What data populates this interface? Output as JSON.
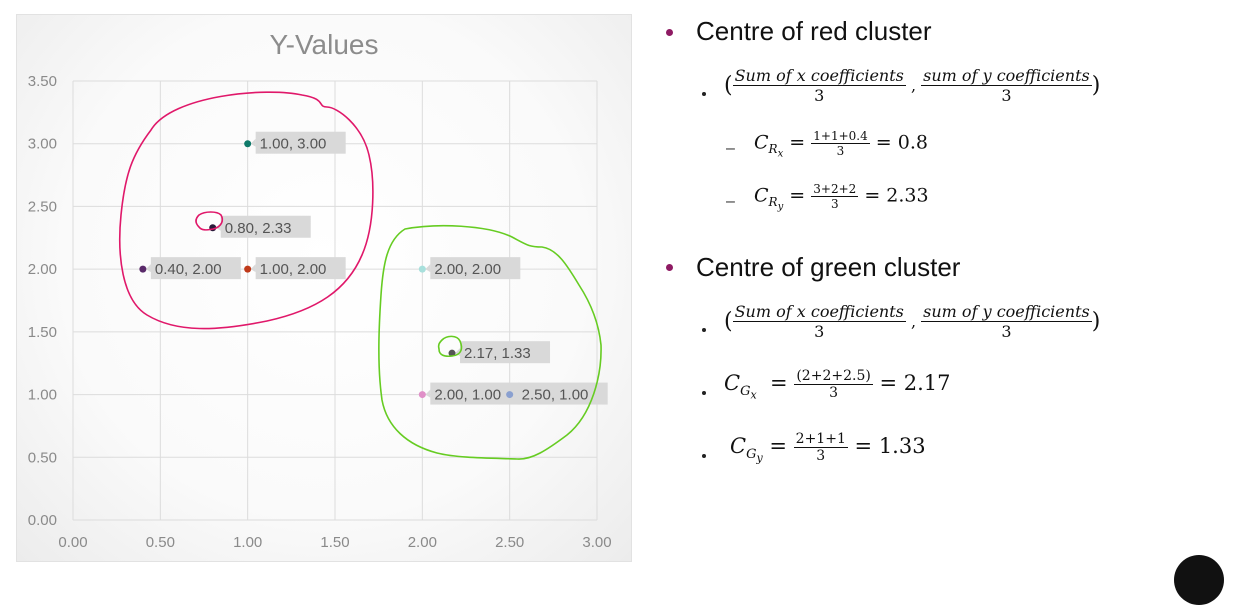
{
  "chart_data": {
    "type": "scatter",
    "title": "Y-Values",
    "xlim": [
      0,
      3
    ],
    "ylim": [
      0,
      3.5
    ],
    "x_ticks": [
      "0.00",
      "0.50",
      "1.00",
      "1.50",
      "2.00",
      "2.50",
      "3.00"
    ],
    "y_ticks": [
      "0.00",
      "0.50",
      "1.00",
      "1.50",
      "2.00",
      "2.50",
      "3.00",
      "3.50"
    ],
    "grid": true,
    "points": [
      {
        "x": 1.0,
        "y": 3.0,
        "label": "1.00, 3.00",
        "color": "#0f7a6a"
      },
      {
        "x": 0.8,
        "y": 2.33,
        "label": "0.80, 2.33",
        "color": "#2a1a3a"
      },
      {
        "x": 0.4,
        "y": 2.0,
        "label": "0.40, 2.00",
        "color": "#5a2a6a"
      },
      {
        "x": 1.0,
        "y": 2.0,
        "label": "1.00, 2.00",
        "color": "#c03a1a"
      },
      {
        "x": 2.0,
        "y": 2.0,
        "label": "2.00, 2.00",
        "color": "#a8e0dc"
      },
      {
        "x": 2.17,
        "y": 1.33,
        "label": "2.17, 1.33",
        "color": "#555555"
      },
      {
        "x": 2.0,
        "y": 1.0,
        "label": "2.00, 1.00",
        "color": "#e090c8"
      },
      {
        "x": 2.5,
        "y": 1.0,
        "label": "2.50, 1.00",
        "color": "#8aa0d0"
      }
    ],
    "annotations": {
      "red_cluster_color": "#e0186a",
      "green_cluster_color": "#66cc22"
    }
  },
  "notes": {
    "red_heading": "Centre of red cluster",
    "green_heading": "Centre of green cluster",
    "formula_num_x": "Sum of x coefficients",
    "formula_num_y": "sum of y coefficients",
    "formula_den": "3",
    "red_x": {
      "var": "C",
      "sub": "R",
      "subsub": "x",
      "num": "1+1+0.4",
      "den": "3",
      "result": "= 0.8"
    },
    "red_y": {
      "var": "C",
      "sub": "R",
      "subsub": "y",
      "num": "3+2+2",
      "den": "3",
      "result": "=  2.33"
    },
    "green_x": {
      "var": "C",
      "sub": "G",
      "subsub": "x",
      "num": "(2+2+2.5)",
      "den": "3",
      "result": "= 2.17"
    },
    "green_y": {
      "var": "C",
      "sub": "G",
      "subsub": "y",
      "num": "2+1+1",
      "den": "3",
      "result": "=  1.33"
    },
    "bullet_color": "#8e1a63"
  }
}
